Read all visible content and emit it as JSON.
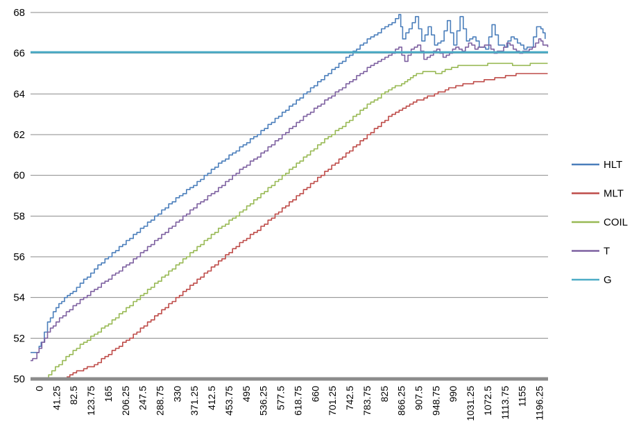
{
  "chart_data": {
    "type": "line",
    "title": "",
    "xlabel": "",
    "ylabel": "",
    "ylim": [
      50,
      68
    ],
    "yticks": [
      50,
      52,
      54,
      56,
      58,
      60,
      62,
      64,
      66,
      68
    ],
    "xlim": [
      0,
      1216.875
    ],
    "xtick_labels": [
      "0",
      "41.25",
      "82.5",
      "123.75",
      "165",
      "206.25",
      "247.5",
      "288.75",
      "330",
      "371.25",
      "412.5",
      "453.75",
      "495",
      "536.25",
      "577.5",
      "618.75",
      "660",
      "701.25",
      "742.5",
      "783.75",
      "825",
      "866.25",
      "907.5",
      "948.75",
      "990",
      "1031.25",
      "1072.5",
      "1113.75",
      "1155",
      "1196.25"
    ],
    "grid": "horizontal",
    "legend_position": "right",
    "series": [
      {
        "name": "HLT",
        "color": "#4a7ebb",
        "x": [
          0,
          15,
          25,
          40,
          60,
          80,
          100,
          150,
          200,
          250,
          300,
          350,
          400,
          450,
          500,
          550,
          600,
          650,
          700,
          750,
          800,
          850,
          866,
          875,
          890,
          905,
          920,
          935,
          950,
          965,
          980,
          995,
          1010,
          1025,
          1040,
          1055,
          1070,
          1085,
          1100,
          1115,
          1130,
          1145,
          1160,
          1175,
          1190,
          1200,
          1210
        ],
        "y": [
          51.3,
          51.3,
          51.8,
          52.8,
          53.5,
          54.0,
          54.3,
          55.4,
          56.3,
          57.2,
          58.1,
          59.0,
          59.8,
          60.7,
          61.5,
          62.3,
          63.2,
          64.1,
          65.0,
          65.9,
          66.8,
          67.5,
          67.9,
          66.7,
          67.2,
          67.8,
          66.6,
          67.3,
          66.4,
          66.6,
          67.6,
          66.4,
          67.8,
          66.6,
          66.8,
          66.3,
          66.2,
          67.4,
          66.4,
          66.3,
          66.8,
          66.5,
          66.2,
          66.3,
          67.3,
          67.2,
          66.7
        ]
      },
      {
        "name": "MLT",
        "color": "#be4b48",
        "x": [
          85,
          100,
          150,
          200,
          250,
          300,
          350,
          400,
          450,
          500,
          550,
          600,
          650,
          700,
          750,
          800,
          850,
          900,
          950,
          1000,
          1050,
          1100,
          1150,
          1200,
          1216
        ],
        "y": [
          50.1,
          50.3,
          50.7,
          51.5,
          52.3,
          53.2,
          54.1,
          55.0,
          55.9,
          56.8,
          57.6,
          58.5,
          59.4,
          60.3,
          61.2,
          62.1,
          63.0,
          63.6,
          64.0,
          64.4,
          64.6,
          64.8,
          65.0,
          65.0,
          65.0
        ]
      },
      {
        "name": "COIL",
        "color": "#98b954",
        "x": [
          35,
          50,
          75,
          100,
          150,
          200,
          250,
          300,
          350,
          400,
          450,
          500,
          550,
          600,
          650,
          700,
          750,
          800,
          850,
          880,
          900,
          930,
          960,
          990,
          1020,
          1050,
          1100,
          1150,
          1200,
          1216
        ],
        "y": [
          50.0,
          50.4,
          50.9,
          51.4,
          52.2,
          53.0,
          53.9,
          54.8,
          55.7,
          56.6,
          57.5,
          58.3,
          59.2,
          60.1,
          61.0,
          61.9,
          62.7,
          63.6,
          64.3,
          64.6,
          64.9,
          65.1,
          65.0,
          65.3,
          65.4,
          65.4,
          65.5,
          65.4,
          65.5,
          65.5
        ]
      },
      {
        "name": "T",
        "color": "#7d60a0",
        "x": [
          0,
          10,
          20,
          40,
          60,
          100,
          150,
          200,
          250,
          300,
          350,
          400,
          450,
          500,
          550,
          600,
          650,
          700,
          750,
          800,
          850,
          866,
          880,
          895,
          910,
          925,
          940,
          955,
          970,
          985,
          1000,
          1015,
          1030,
          1045,
          1060,
          1075,
          1090,
          1105,
          1120,
          1135,
          1150,
          1165,
          1180,
          1195,
          1205,
          1216
        ],
        "y": [
          50.9,
          51.0,
          51.5,
          52.3,
          52.8,
          53.6,
          54.4,
          55.2,
          56.0,
          56.9,
          57.8,
          58.7,
          59.5,
          60.4,
          61.2,
          62.1,
          63.0,
          63.8,
          64.6,
          65.4,
          66.0,
          66.3,
          65.6,
          66.2,
          66.4,
          65.7,
          65.9,
          66.2,
          65.8,
          66.0,
          66.3,
          66.1,
          66.5,
          66.2,
          66.3,
          66.4,
          66.0,
          66.1,
          66.5,
          66.2,
          66.0,
          66.1,
          66.3,
          66.7,
          66.4,
          66.3
        ]
      },
      {
        "name": "G",
        "color": "#4bacc6",
        "x": [
          0,
          1216.875
        ],
        "y": [
          66.05,
          66.05
        ]
      }
    ]
  }
}
